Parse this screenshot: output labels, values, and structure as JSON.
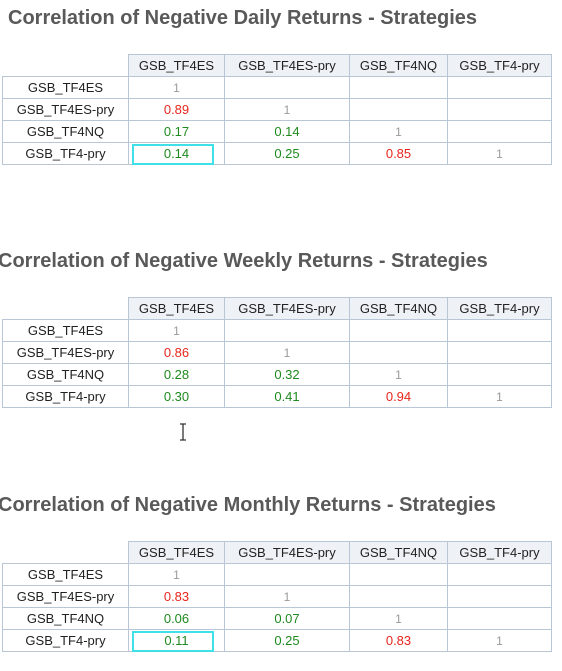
{
  "columns": [
    "GSB_TF4ES",
    "GSB_TF4ES-pry",
    "GSB_TF4NQ",
    "GSB_TF4-pry"
  ],
  "rows": [
    "GSB_TF4ES",
    "GSB_TF4ES-pry",
    "GSB_TF4NQ",
    "GSB_TF4-pry"
  ],
  "colors": {
    "negative_high": "#e8261e",
    "low": "#1e8a1e",
    "diagonal": "#9a9a9a",
    "selection": "#3fe0e8"
  },
  "tables": [
    {
      "title": "Correlation of Negative Daily Returns - Strategies",
      "cells": [
        [
          "1",
          "",
          "",
          ""
        ],
        [
          "0.89",
          "1",
          "",
          ""
        ],
        [
          "0.17",
          "0.14",
          "1",
          ""
        ],
        [
          "0.14",
          "0.25",
          "0.85",
          "1"
        ]
      ]
    },
    {
      "title": "Correlation of Negative Weekly Returns - Strategies",
      "cells": [
        [
          "1",
          "",
          "",
          ""
        ],
        [
          "0.86",
          "1",
          "",
          ""
        ],
        [
          "0.28",
          "0.32",
          "1",
          ""
        ],
        [
          "0.30",
          "0.41",
          "0.94",
          "1"
        ]
      ]
    },
    {
      "title": "Correlation of Negative Monthly Returns - Strategies",
      "cells": [
        [
          "1",
          "",
          "",
          ""
        ],
        [
          "0.83",
          "1",
          "",
          ""
        ],
        [
          "0.06",
          "0.07",
          "1",
          ""
        ],
        [
          "0.11",
          "0.25",
          "0.83",
          "1"
        ]
      ]
    }
  ],
  "cursor_icon": "text-cursor-icon"
}
